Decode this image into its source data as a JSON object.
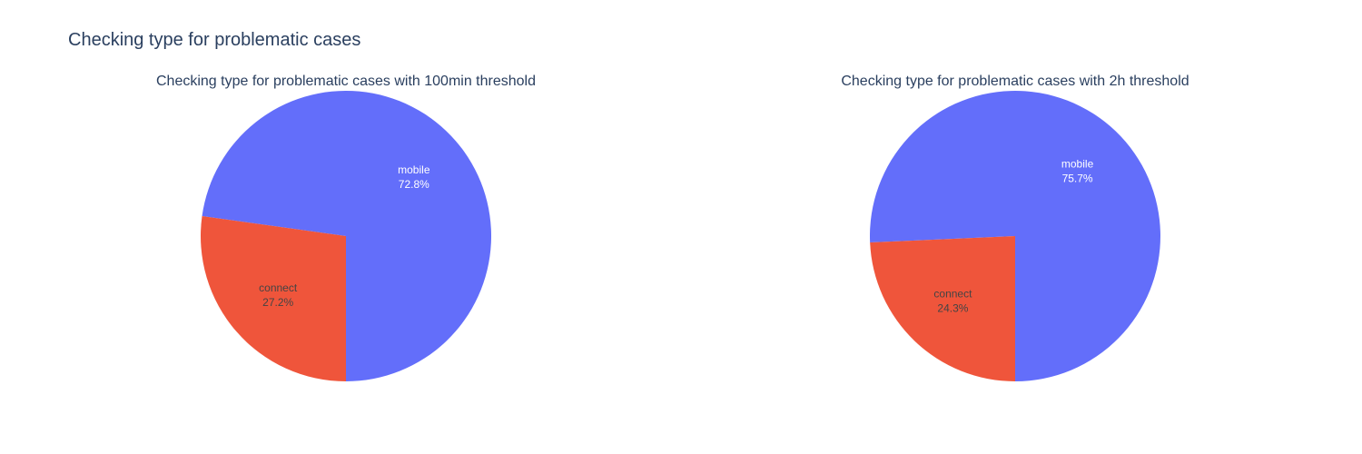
{
  "title": "Checking type for problematic cases",
  "chart_data": [
    {
      "type": "pie",
      "title": "Checking type for problematic cases with 100min threshold",
      "labels": [
        "mobile",
        "connect"
      ],
      "percentages": [
        "72.8%",
        "27.2%"
      ],
      "values": [
        72.8,
        27.2
      ],
      "colors": [
        "#636efa",
        "#ef553b"
      ],
      "label_colors": [
        "#ffffff",
        "#444444"
      ],
      "direction": "counterclockwise",
      "start": "bottom"
    },
    {
      "type": "pie",
      "title": "Checking type for problematic cases with 2h threshold",
      "labels": [
        "mobile",
        "connect"
      ],
      "percentages": [
        "75.7%",
        "24.3%"
      ],
      "values": [
        75.7,
        24.3
      ],
      "colors": [
        "#636efa",
        "#ef553b"
      ],
      "label_colors": [
        "#ffffff",
        "#444444"
      ],
      "direction": "counterclockwise",
      "start": "bottom"
    }
  ]
}
